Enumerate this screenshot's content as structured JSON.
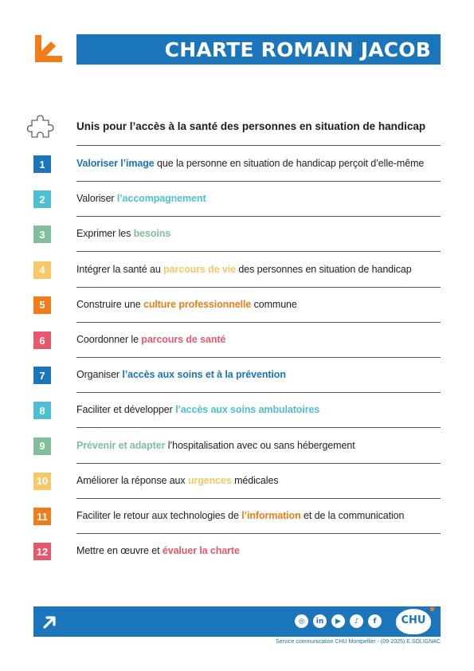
{
  "header": {
    "title": "CHARTE ROMAIN JACOB"
  },
  "heading": "Unis pour l’accès à la santé des personnes en situation de handicap",
  "items": [
    {
      "num": "1",
      "color": "#1a75bb",
      "before": "",
      "highlight": "Valoriser l’image",
      "after": " que la personne en situation de handicap perçoit d’elle-même"
    },
    {
      "num": "2",
      "color": "#4dbfd0",
      "before": "Valoriser ",
      "highlight": "l’accompagnement",
      "after": ""
    },
    {
      "num": "3",
      "color": "#7fbf9c",
      "before": "Exprimer les ",
      "highlight": "besoins",
      "after": ""
    },
    {
      "num": "4",
      "color": "#f8c766",
      "before": "Intégrer la santé au ",
      "highlight": "parcours de vie",
      "after": " des personnes en situation de handicap"
    },
    {
      "num": "5",
      "color": "#f07d1a",
      "before": "Construire une ",
      "highlight": "culture professionnelle",
      "after": " commune"
    },
    {
      "num": "6",
      "color": "#e8586c",
      "before": "Coordonner le ",
      "highlight": "parcours de santé",
      "after": ""
    },
    {
      "num": "7",
      "color": "#1a75bb",
      "before": "Organiser ",
      "highlight": "l’accès aux soins et à la prévention",
      "after": ""
    },
    {
      "num": "8",
      "color": "#4dbfd0",
      "before": "Faciliter et développer ",
      "highlight": "l’accès aux soins ambulatoires",
      "after": ""
    },
    {
      "num": "9",
      "color": "#7fbf9c",
      "before": "",
      "highlight": "Prévenir et adapter",
      "after": " l’hospitalisation avec ou sans hébergement"
    },
    {
      "num": "10",
      "color": "#f8c766",
      "before": "Améliorer la réponse aux ",
      "highlight": "urgences",
      "after": " médicales"
    },
    {
      "num": "11",
      "color": "#f07d1a",
      "before": "Faciliter le retour aux technologies de ",
      "highlight": "l’information",
      "after": " et de la communication"
    },
    {
      "num": "12",
      "color": "#e8586c",
      "before": "Mettre en œuvre et ",
      "highlight": "évaluer la charte",
      "after": ""
    }
  ],
  "footer": {
    "social_icons": [
      "instagram-icon",
      "linkedin-icon",
      "youtube-icon",
      "tiktok-icon",
      "facebook-icon"
    ],
    "logo_text": "CHU",
    "credit": "Service communication CHU Montpellier - (09-2025) E.SOLIGNAC"
  },
  "colors": {
    "brand_blue": "#1a75bb",
    "accent_orange": "#f07d1a"
  }
}
